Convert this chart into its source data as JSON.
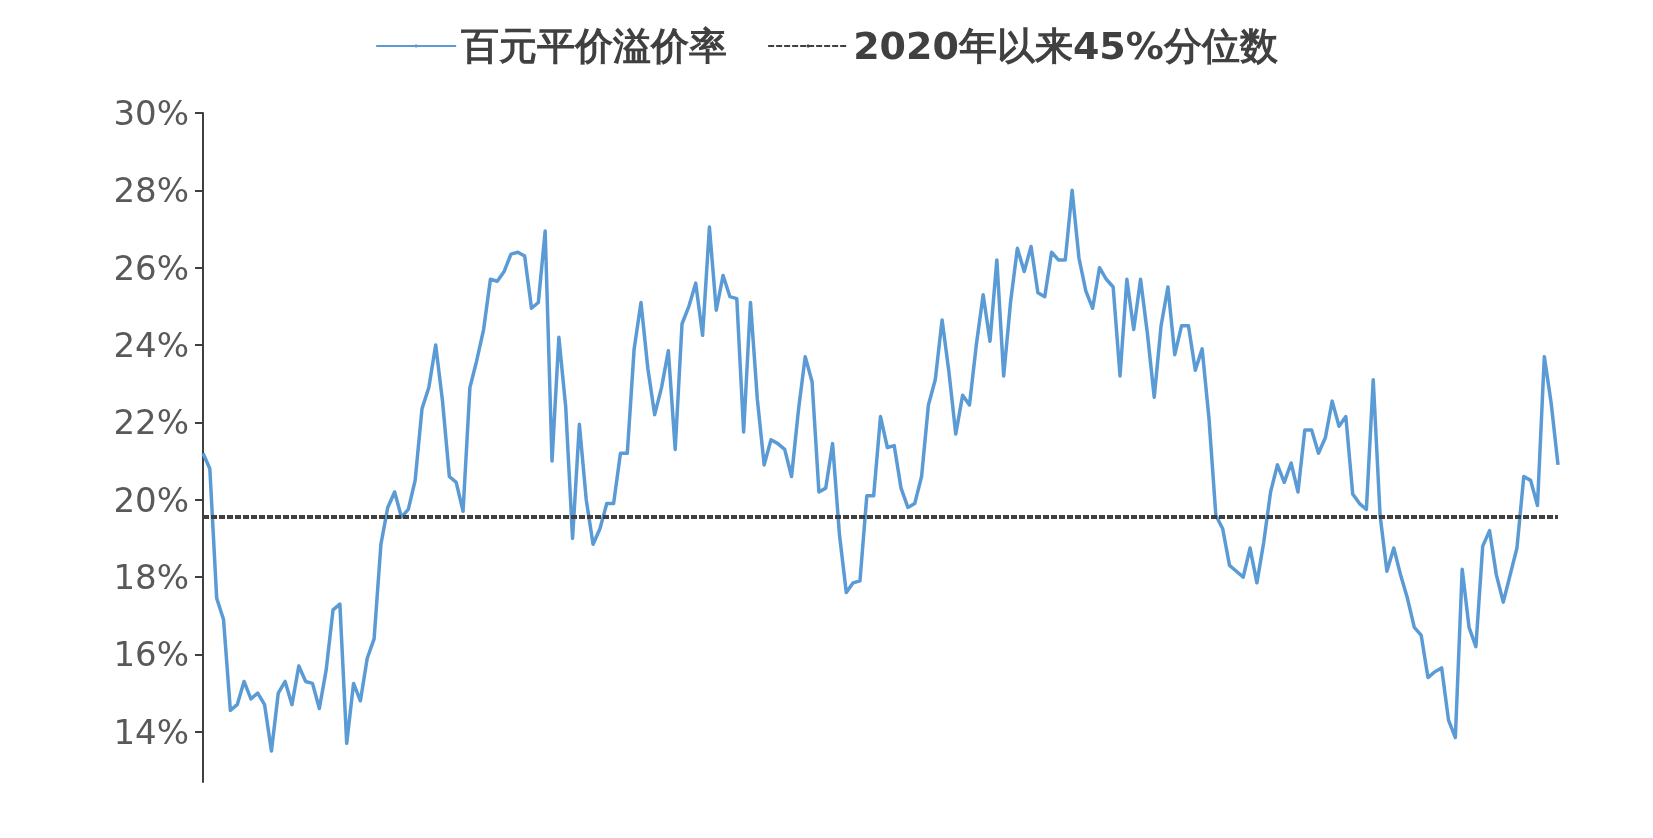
{
  "chart_data": {
    "type": "line",
    "categories": [
      null,
      null,
      null,
      null,
      null,
      null,
      null,
      null,
      null,
      null,
      null,
      null,
      null,
      null,
      null,
      null,
      null,
      null,
      null,
      null,
      null,
      null,
      null,
      null,
      null,
      null,
      null,
      null,
      null,
      null,
      null,
      null,
      null,
      null,
      null,
      null,
      null,
      null,
      null,
      null,
      null,
      null,
      null,
      null,
      null,
      null,
      null,
      null,
      null,
      null,
      null,
      null,
      null,
      null,
      null,
      null,
      null,
      null,
      null,
      null,
      null,
      null,
      null,
      null,
      null,
      null,
      null,
      null,
      null,
      null,
      null,
      null,
      null,
      null,
      null,
      null,
      null,
      null,
      null,
      null,
      null,
      null,
      null,
      null,
      null,
      null,
      null,
      null,
      null,
      null,
      null,
      null,
      null,
      null,
      null,
      null,
      null,
      null,
      null,
      null,
      null,
      null,
      null,
      null,
      null,
      null,
      null,
      null,
      null,
      null,
      null,
      null,
      null,
      null,
      null,
      null,
      null,
      null,
      null,
      null,
      null,
      null,
      null,
      null,
      null,
      null,
      null,
      null,
      null,
      null,
      null,
      null,
      null,
      null,
      null,
      null,
      null,
      null,
      null,
      null,
      null,
      null,
      null,
      null,
      null,
      null,
      null,
      null,
      null,
      null,
      null,
      null,
      null,
      null,
      null,
      null,
      null,
      null,
      null,
      null,
      null,
      null,
      null,
      null,
      null,
      null,
      null,
      null,
      null,
      null,
      null,
      null,
      null,
      null,
      null,
      null,
      null,
      null,
      null,
      null,
      null,
      null,
      null,
      null,
      null,
      null,
      null,
      null,
      null,
      null,
      null,
      null,
      null,
      null,
      null,
      null,
      null,
      null,
      null
    ],
    "series": [
      {
        "name": "百元平价溢价率",
        "color": "#5b9bd5",
        "values": [
          21.2,
          20.8,
          17.45,
          16.9,
          14.55,
          14.7,
          15.3,
          14.85,
          15.0,
          14.7,
          13.5,
          15.0,
          15.3,
          14.7,
          15.7,
          15.3,
          15.25,
          14.6,
          15.6,
          17.15,
          17.3,
          13.7,
          15.25,
          14.8,
          15.9,
          16.4,
          18.85,
          19.8,
          20.2,
          19.55,
          19.75,
          20.5,
          22.35,
          22.9,
          24.0,
          22.55,
          20.6,
          20.45,
          19.7,
          22.9,
          23.6,
          24.4,
          25.7,
          25.65,
          25.9,
          26.35,
          26.4,
          26.3,
          24.95,
          25.1,
          26.95,
          21.0,
          24.2,
          22.4,
          19.0,
          21.95,
          20.0,
          18.85,
          19.25,
          19.9,
          19.9,
          21.2,
          21.2,
          23.9,
          25.1,
          23.4,
          22.2,
          22.9,
          23.85,
          21.3,
          24.55,
          25.0,
          25.6,
          24.25,
          27.05,
          24.9,
          25.8,
          25.25,
          25.2,
          21.75,
          25.1,
          22.6,
          20.9,
          21.55,
          21.45,
          21.3,
          20.6,
          22.3,
          23.7,
          23.05,
          20.2,
          20.3,
          21.45,
          19.1,
          17.6,
          17.85,
          17.9,
          20.1,
          20.1,
          22.15,
          21.35,
          21.4,
          20.3,
          19.8,
          19.9,
          20.6,
          22.45,
          23.1,
          24.65,
          23.3,
          21.7,
          22.7,
          22.45,
          24.0,
          25.3,
          24.1,
          26.2,
          23.2,
          25.1,
          26.5,
          25.9,
          26.55,
          25.35,
          25.25,
          26.4,
          26.2,
          26.2,
          28.0,
          26.25,
          25.4,
          24.95,
          26.0,
          25.7,
          25.5,
          23.2,
          25.7,
          24.4,
          25.7,
          24.3,
          22.65,
          24.5,
          25.5,
          23.75,
          24.5,
          24.5,
          23.35,
          23.9,
          22.1,
          19.6,
          19.25,
          18.3,
          18.15,
          18.0,
          18.75,
          17.85,
          18.9,
          20.2,
          20.9,
          20.45,
          20.95,
          20.2,
          21.8,
          21.8,
          21.2,
          21.6,
          22.55,
          21.9,
          22.15,
          20.15,
          19.9,
          19.75,
          23.1,
          19.6,
          18.15,
          18.75,
          18.05,
          17.45,
          16.7,
          16.5,
          15.4,
          15.55,
          15.65,
          14.3,
          13.85,
          18.2,
          16.7,
          16.2,
          18.8,
          19.2,
          18.05,
          17.35,
          18.05,
          18.75,
          20.6,
          20.5,
          19.85,
          23.7,
          22.5,
          20.9
        ]
      }
    ],
    "ref_lines": [
      {
        "axis": "y",
        "value": 19.56,
        "label": "2020年以来45%分位数",
        "color": "#404040",
        "line_style": "dashed"
      }
    ],
    "ylim": [
      12.7,
      30
    ],
    "yticks": [
      {
        "value": 14,
        "label": "14%"
      },
      {
        "value": 16,
        "label": "16%"
      },
      {
        "value": 18,
        "label": "18%"
      },
      {
        "value": 20,
        "label": "20%"
      },
      {
        "value": 22,
        "label": "22%"
      },
      {
        "value": 24,
        "label": "24%"
      },
      {
        "value": 26,
        "label": "26%"
      },
      {
        "value": 28,
        "label": "28%"
      },
      {
        "value": 30,
        "label": "30%"
      }
    ],
    "legend": "top",
    "tick_labels": "y"
  }
}
